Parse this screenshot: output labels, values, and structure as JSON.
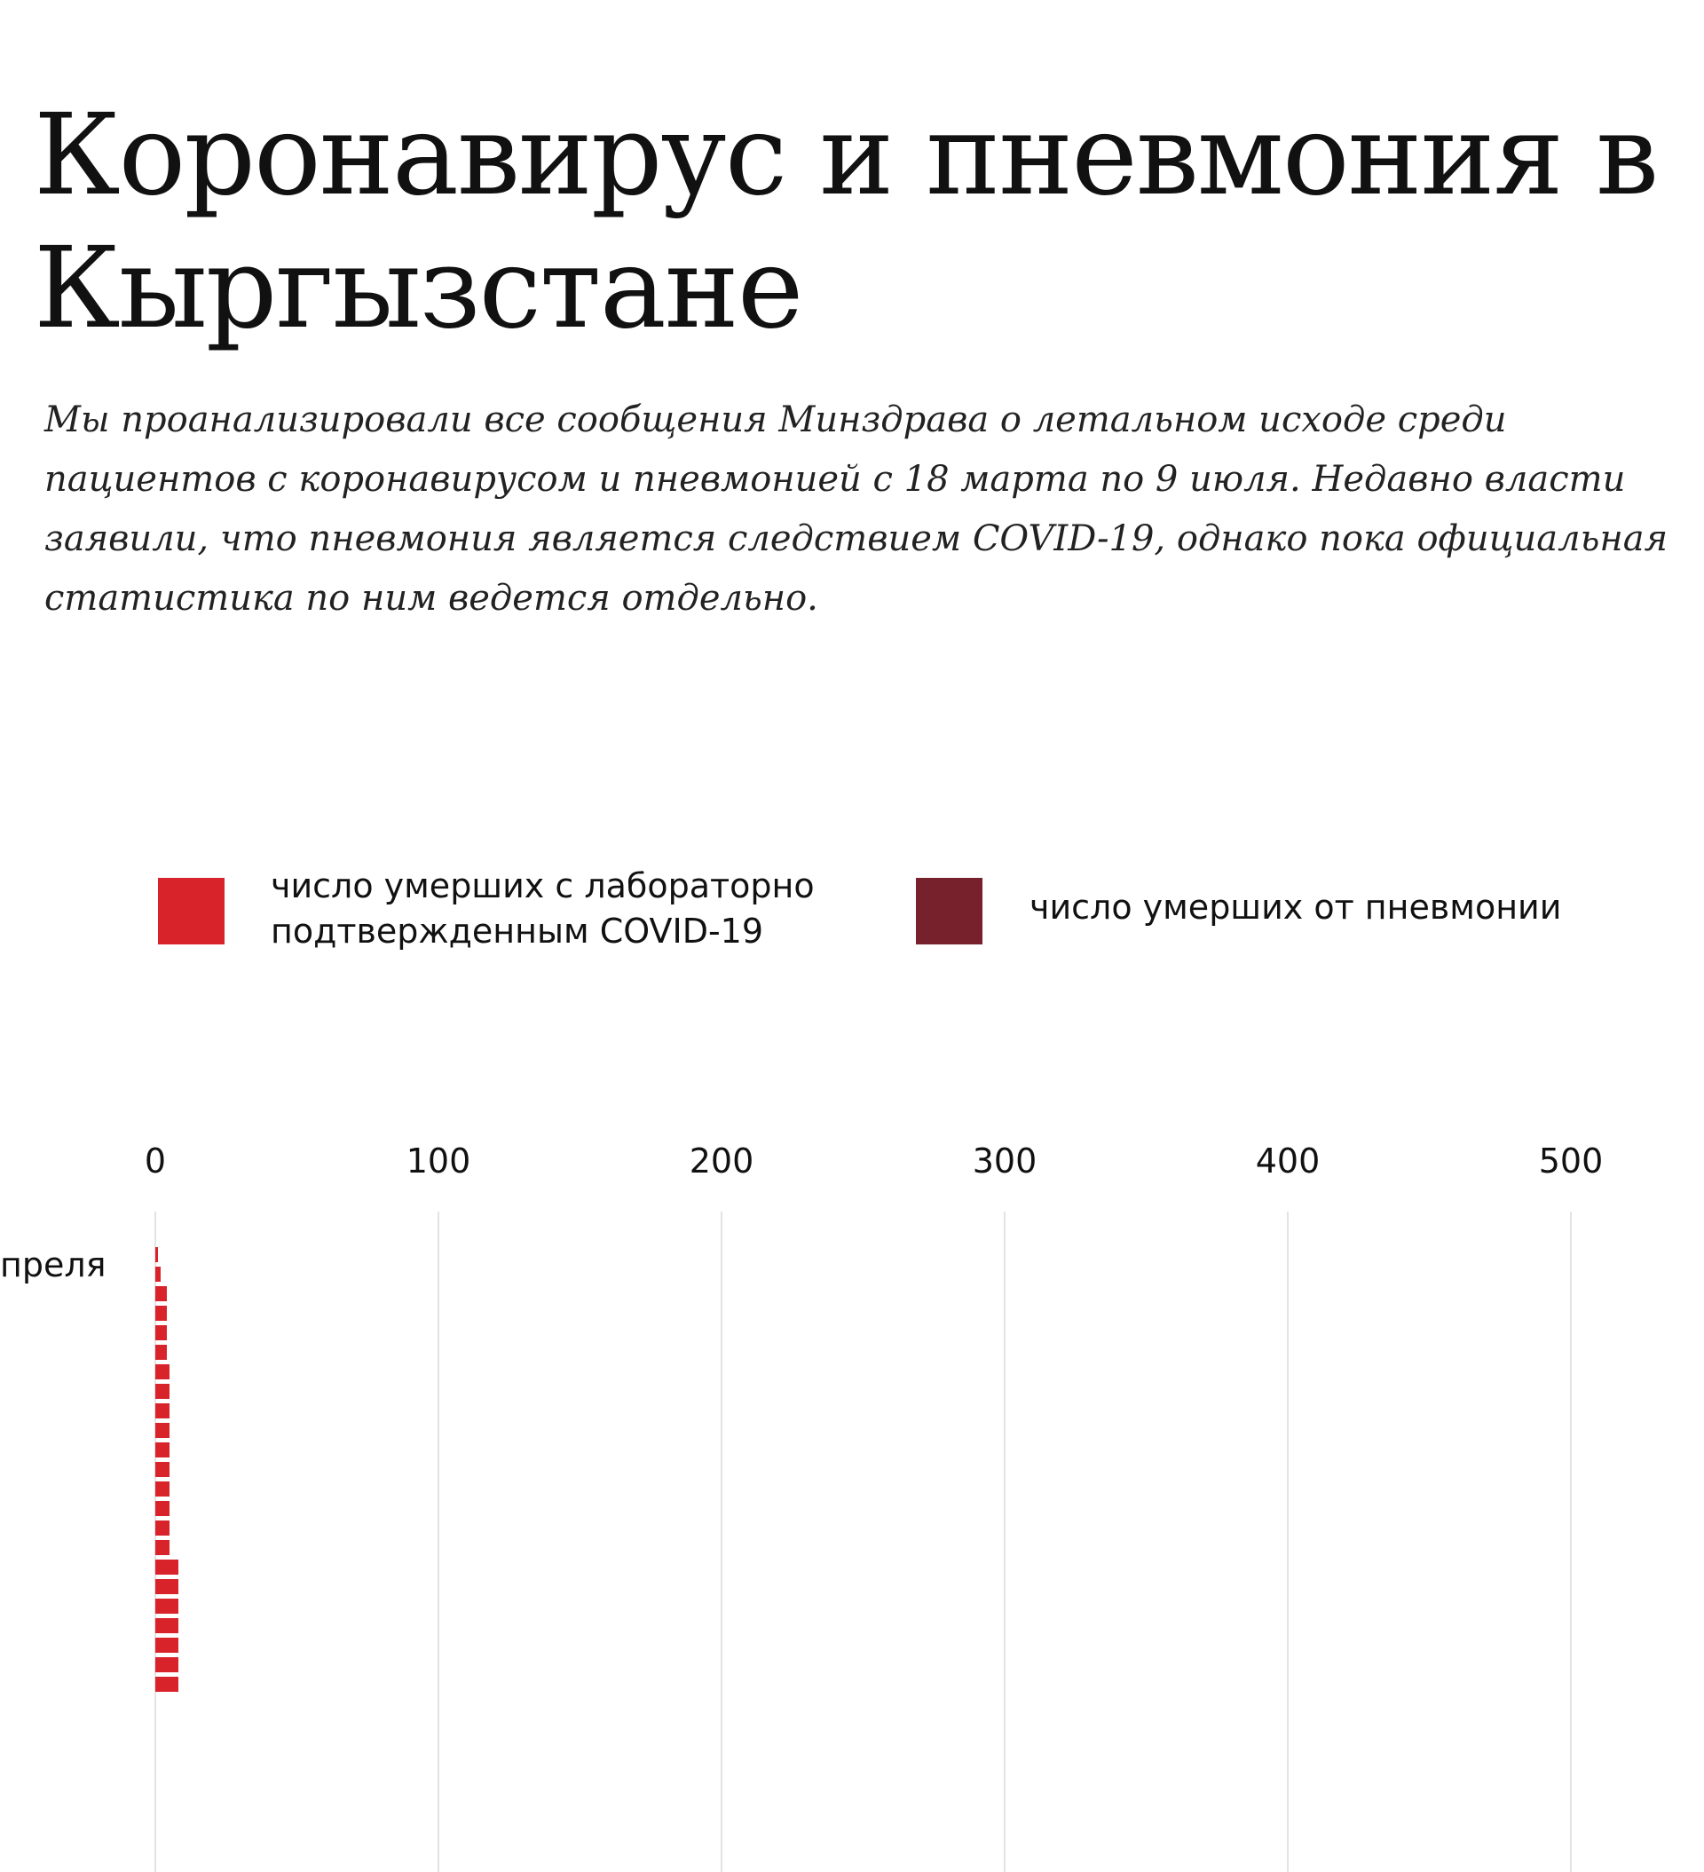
{
  "title": "Коронавирус и пневмония в Кыргызстане",
  "lead": "Мы проанализировали все сообщения Минздрава о летальном исходе среди пациентов с коронавирусом и пневмонией с 18 марта по 9 июля. Недавно власти заявили, что пневмония является следствием COVID-19, однако пока официальная статистика по ним ведется отдельно.",
  "colors": {
    "covid": "#d9232b",
    "pneumonia": "#77212d"
  },
  "chart_data": {
    "type": "bar",
    "orientation": "horizontal",
    "legend": [
      "число умерших с лабораторно подтвержденным COVID-19",
      "число умерших от пневмонии"
    ],
    "legend_placement": "top",
    "xticks": [
      "0",
      "100",
      "200",
      "300",
      "400",
      "500"
    ],
    "xlim": [
      0,
      500
    ],
    "grid": true,
    "first_category_label": "преля",
    "series": [
      {
        "name": "число умерших с лабораторно подтвержденным COVID-19",
        "values": [
          1,
          2,
          4,
          4,
          4,
          4,
          5,
          5,
          5,
          5,
          5,
          5,
          5,
          5,
          5,
          5,
          8,
          8,
          8,
          8,
          8,
          8,
          8
        ]
      }
    ]
  }
}
